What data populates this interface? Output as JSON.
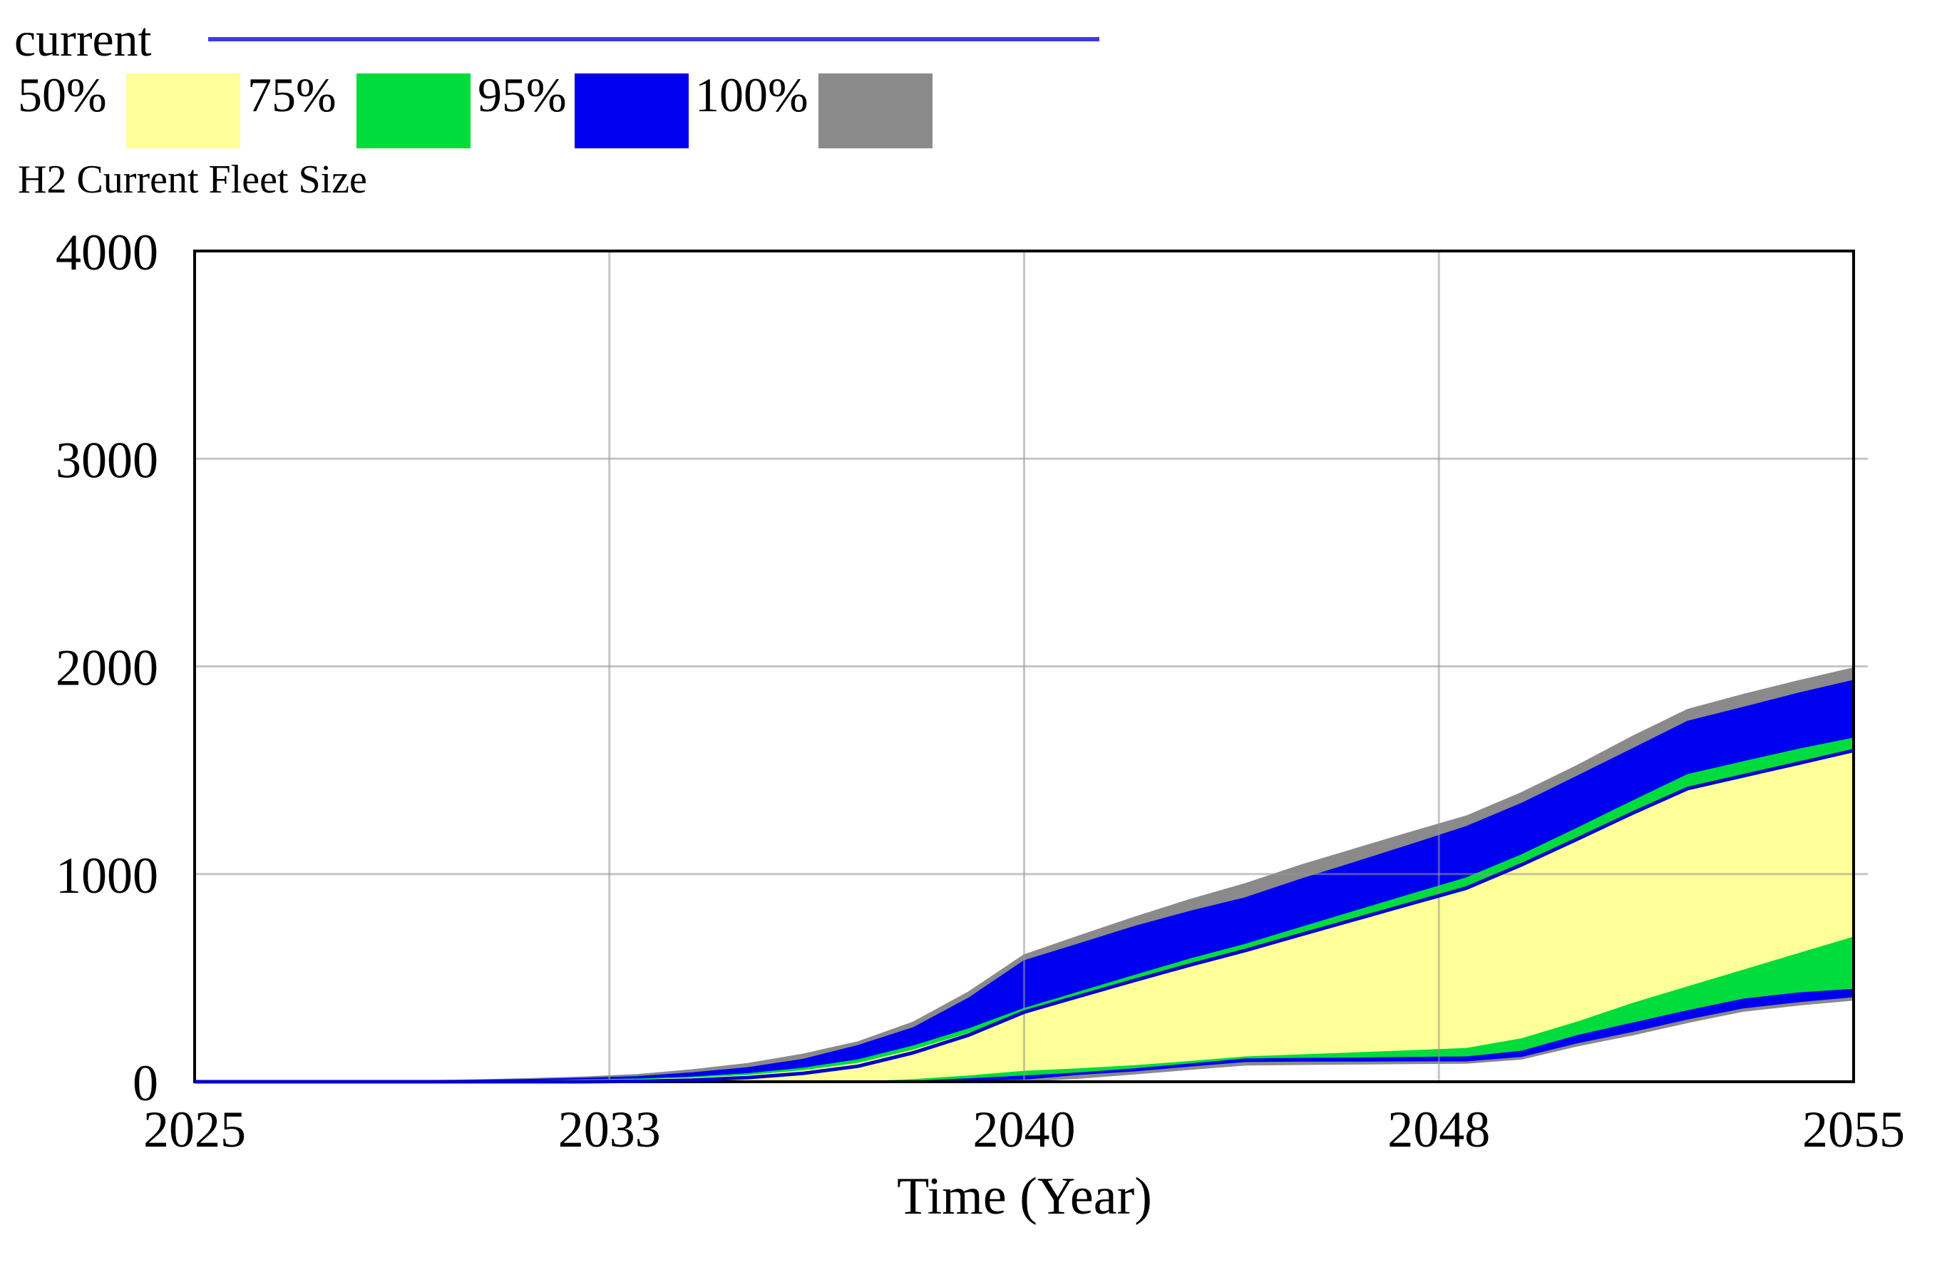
{
  "legend": {
    "current_label": "current",
    "current_line_color": "#3b3be6",
    "bands": [
      {
        "label": "50%",
        "color": "#ffff99"
      },
      {
        "label": "75%",
        "color": "#00dc3c"
      },
      {
        "label": "95%",
        "color": "#0000f0"
      },
      {
        "label": "100%",
        "color": "#8a8a8a"
      }
    ]
  },
  "chart_data": {
    "type": "area",
    "title": "H2 Current Fleet Size",
    "xlabel": "Time (Year)",
    "ylabel": "",
    "xlim": [
      2025,
      2055
    ],
    "ylim": [
      0,
      4000
    ],
    "grid": true,
    "legend_position": "top-left",
    "x_tick_labels": [
      "2025",
      "2033",
      "2040",
      "2048",
      "2055"
    ],
    "y_tick_labels": [
      "0",
      "1000",
      "2000",
      "3000",
      "4000"
    ],
    "years": [
      2025,
      2026,
      2027,
      2028,
      2029,
      2030,
      2031,
      2032,
      2033,
      2034,
      2035,
      2036,
      2037,
      2038,
      2039,
      2040,
      2041,
      2042,
      2043,
      2044,
      2045,
      2046,
      2047,
      2048,
      2049,
      2050,
      2051,
      2052,
      2053,
      2054,
      2055
    ],
    "series": [
      {
        "name": "100%",
        "role": "band",
        "color": "#8a8a8a",
        "upper": [
          0,
          0,
          0,
          0,
          2,
          6,
          12,
          20,
          32,
          55,
          85,
          130,
          190,
          285,
          430,
          608,
          700,
          790,
          875,
          951,
          1040,
          1120,
          1200,
          1277,
          1390,
          1520,
          1660,
          1790,
          1862,
          1928,
          1990
        ],
        "lower": [
          0,
          0,
          0,
          0,
          0,
          0,
          0,
          0,
          0,
          0,
          0,
          0,
          0,
          2,
          3,
          5,
          20,
          40,
          62,
          83,
          86,
          88,
          90,
          92,
          112,
          175,
          228,
          288,
          342,
          372,
          396
        ]
      },
      {
        "name": "95%",
        "role": "band",
        "color": "#0000f0",
        "upper": [
          0,
          0,
          0,
          0,
          1,
          4,
          8,
          14,
          22,
          40,
          65,
          105,
          172,
          258,
          400,
          580,
          662,
          745,
          818,
          883,
          972,
          1055,
          1140,
          1226,
          1338,
          1468,
          1600,
          1733,
          1800,
          1868,
          1930
        ],
        "lower": [
          0,
          0,
          0,
          0,
          0,
          0,
          0,
          0,
          0,
          0,
          0,
          0,
          1,
          4,
          9,
          15,
          38,
          55,
          78,
          100,
          102,
          102,
          103,
          103,
          125,
          190,
          245,
          305,
          358,
          388,
          412
        ]
      },
      {
        "name": "75%",
        "role": "band",
        "color": "#00dc3c",
        "upper": [
          0,
          0,
          0,
          0,
          0,
          1,
          3,
          6,
          10,
          20,
          36,
          62,
          103,
          170,
          252,
          350,
          430,
          510,
          588,
          659,
          740,
          820,
          900,
          979,
          1090,
          1218,
          1348,
          1476,
          1538,
          1598,
          1652
        ],
        "lower": [
          0,
          0,
          0,
          0,
          0,
          0,
          0,
          0,
          0,
          0,
          0,
          1,
          4,
          10,
          22,
          35,
          50,
          70,
          93,
          117,
          120,
          122,
          125,
          127,
          155,
          230,
          290,
          350,
          405,
          435,
          453
        ]
      },
      {
        "name": "50%",
        "role": "band",
        "color": "#ffff99",
        "upper": [
          0,
          0,
          0,
          0,
          0,
          0,
          2,
          4,
          7,
          14,
          27,
          50,
          86,
          150,
          230,
          323,
          400,
          475,
          549,
          618,
          694,
          770,
          844,
          917,
          1030,
          1153,
          1278,
          1397,
          1458,
          1520,
          1580
        ],
        "lower": [
          0,
          0,
          0,
          0,
          0,
          0,
          0,
          0,
          0,
          0,
          1,
          3,
          7,
          18,
          35,
          58,
          70,
          85,
          105,
          127,
          137,
          147,
          157,
          168,
          215,
          295,
          385,
          465,
          545,
          625,
          704
        ]
      },
      {
        "name": "current",
        "role": "line",
        "color": "#0000cc",
        "values": [
          0,
          0,
          0,
          0,
          0,
          0,
          0,
          0,
          2,
          8,
          20,
          40,
          75,
          140,
          225,
          335,
          412,
          488,
          562,
          632,
          708,
          783,
          858,
          933,
          1045,
          1168,
          1293,
          1412,
          1473,
          1533,
          1595
        ]
      }
    ]
  }
}
